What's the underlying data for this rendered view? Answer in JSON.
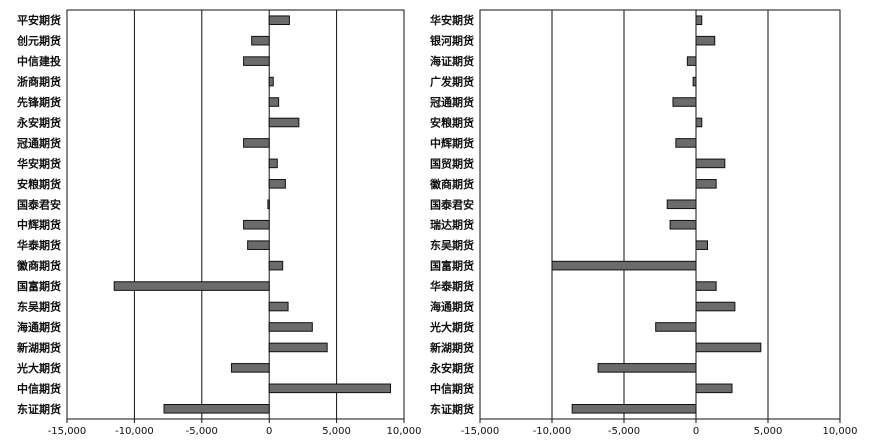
{
  "colors": {
    "bar_fill": "#6b6b6b",
    "bar_stroke": "#111111",
    "frame": "#111111",
    "grid": "#111111"
  },
  "chart_data": [
    {
      "type": "bar",
      "orientation": "horizontal",
      "grid": true,
      "xlim": [
        -15000,
        10000
      ],
      "xticks": [
        -15000,
        -10000,
        -5000,
        0,
        5000,
        10000
      ],
      "tick_labels": [
        "-15,000",
        "-10,000",
        "-5,000",
        "0",
        "5,000",
        "10,000"
      ],
      "categories": [
        "平安期货",
        "创元期货",
        "中信建投",
        "浙商期货",
        "先锋期货",
        "永安期货",
        "冠通期货",
        "华安期货",
        "安粮期货",
        "国泰君安",
        "中辉期货",
        "华泰期货",
        "徽商期货",
        "国富期货",
        "东吴期货",
        "海通期货",
        "新湖期货",
        "光大期货",
        "中信期货",
        "东证期货"
      ],
      "values": [
        1500,
        -1300,
        -1900,
        300,
        700,
        2200,
        -1900,
        600,
        1200,
        -100,
        -1900,
        -1600,
        1000,
        -11500,
        1400,
        3200,
        4300,
        -2800,
        9000,
        -7800
      ]
    },
    {
      "type": "bar",
      "orientation": "horizontal",
      "grid": true,
      "xlim": [
        -15000,
        10000
      ],
      "xticks": [
        -15000,
        -10000,
        -5000,
        0,
        5000,
        10000
      ],
      "tick_labels": [
        "-15,000",
        "-10,000",
        "-5,000",
        "0",
        "5,000",
        "10,000"
      ],
      "categories": [
        "华安期货",
        "银河期货",
        "海证期货",
        "广发期货",
        "冠通期货",
        "安粮期货",
        "中辉期货",
        "国贸期货",
        "徽商期货",
        "国泰君安",
        "瑞达期货",
        "东吴期货",
        "国富期货",
        "华泰期货",
        "海通期货",
        "光大期货",
        "新湖期货",
        "永安期货",
        "中信期货",
        "东证期货"
      ],
      "values": [
        400,
        1300,
        -600,
        -200,
        -1600,
        400,
        -1400,
        2000,
        1400,
        -2000,
        -1800,
        800,
        -10000,
        1400,
        2700,
        -2800,
        4500,
        -6800,
        2500,
        -8600
      ]
    }
  ]
}
